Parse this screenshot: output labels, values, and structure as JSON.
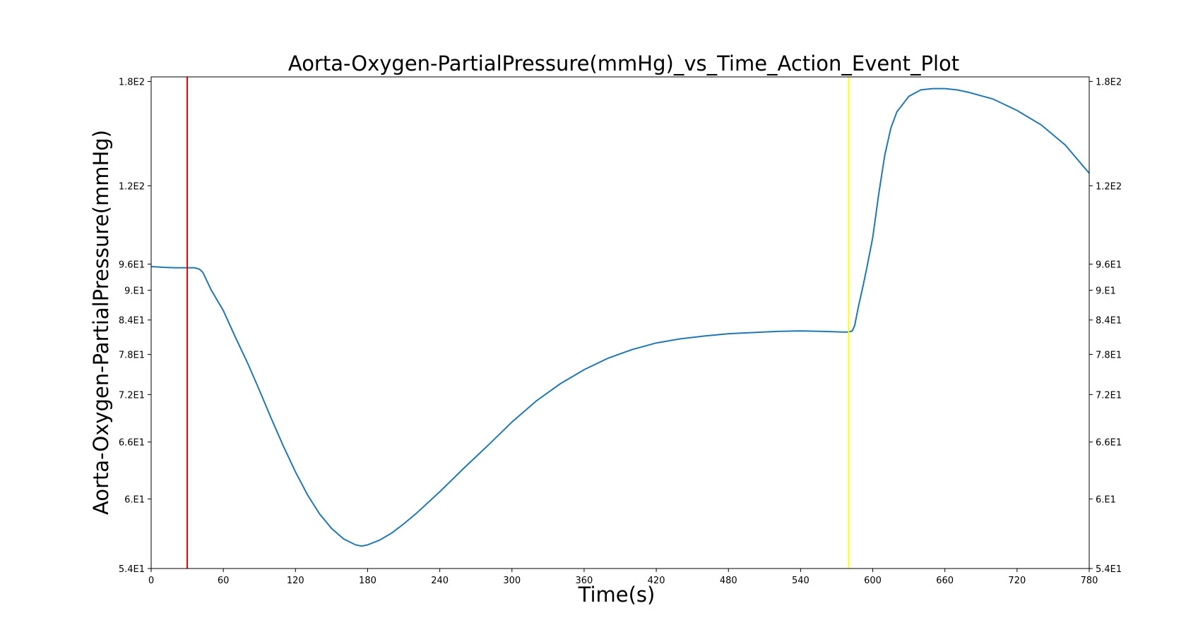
{
  "chart_data": {
    "type": "line",
    "title": "Aorta-Oxygen-PartialPressure(mmHg)_vs_Time_Action_Event_Plot",
    "xlabel": "Time(s)",
    "ylabel": "Aorta-Oxygen-PartialPressure(mmHg)",
    "xlim": [
      0,
      780
    ],
    "ylim": [
      54,
      184
    ],
    "y_scale": "inverse",
    "x_ticks": [
      0,
      60,
      120,
      180,
      240,
      300,
      360,
      420,
      480,
      540,
      600,
      660,
      720,
      780
    ],
    "x_tick_labels": [
      "0",
      "60",
      "120",
      "180",
      "240",
      "300",
      "360",
      "420",
      "480",
      "540",
      "600",
      "660",
      "720",
      "780"
    ],
    "y_ticks": [
      54,
      60,
      66,
      72,
      78,
      84,
      90,
      96,
      120,
      180
    ],
    "y_tick_labels": [
      "5.4E1",
      "6.E1",
      "6.6E1",
      "7.2E1",
      "7.8E1",
      "8.4E1",
      "9.E1",
      "9.6E1",
      "1.2E2",
      "1.8E2"
    ],
    "right_axis_ticks": true,
    "grid": false,
    "line_color": "#1f77b4",
    "event_lines": [
      {
        "x": 30,
        "color": "#e00000"
      },
      {
        "x": 580,
        "color": "#ffff00"
      }
    ],
    "series": [
      {
        "x": [
          0,
          10,
          20,
          30,
          36,
          40,
          43,
          50,
          60,
          70,
          80,
          90,
          100,
          110,
          120,
          130,
          140,
          150,
          160,
          170,
          175,
          180,
          190,
          200,
          210,
          220,
          240,
          260,
          280,
          300,
          320,
          340,
          360,
          380,
          400,
          420,
          440,
          460,
          480,
          500,
          520,
          540,
          560,
          575,
          580,
          583,
          585,
          588,
          592,
          595,
          600,
          605,
          610,
          615,
          620,
          630,
          640,
          650,
          660,
          670,
          680,
          700,
          720,
          740,
          760,
          780
        ],
        "y": [
          95.4,
          95.2,
          95.1,
          95.1,
          95.1,
          94.8,
          94.0,
          90.0,
          85.8,
          80.9,
          76.7,
          72.6,
          68.8,
          65.5,
          62.7,
          60.4,
          58.6,
          57.3,
          56.4,
          55.9,
          55.8,
          55.9,
          56.3,
          56.9,
          57.7,
          58.6,
          60.7,
          63.1,
          65.6,
          68.4,
          71.1,
          73.5,
          75.6,
          77.4,
          78.8,
          79.9,
          80.6,
          81.1,
          81.5,
          81.7,
          81.9,
          82.0,
          81.9,
          81.8,
          81.8,
          82.0,
          83.0,
          86.5,
          91.0,
          95.0,
          103.0,
          117.0,
          133.0,
          147.0,
          157.0,
          168.0,
          173.0,
          174.0,
          174.0,
          173.0,
          171.0,
          166.0,
          158.0,
          149.0,
          138.0,
          125.0
        ]
      }
    ]
  }
}
